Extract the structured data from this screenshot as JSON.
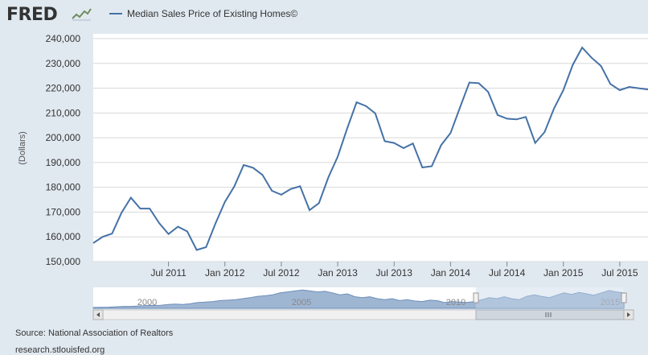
{
  "app": {
    "logo_text": "FRED",
    "logo_icon": "trend-line-icon",
    "source_text": "Source: National Association of Realtors",
    "site_text": "research.stlouisfed.org"
  },
  "colors": {
    "background": "#e1e9f0",
    "plot_background": "#ffffff",
    "series": "#4572a7",
    "grid": "#d8d8d8",
    "navigator_fill": "#9fb6d3",
    "navigator_mask": "#c7d6e8"
  },
  "navigator": {
    "years": [
      "2000",
      "2005",
      "2010",
      "2015"
    ],
    "overview_values": [
      0.04,
      0.05,
      0.06,
      0.08,
      0.1,
      0.1,
      0.12,
      0.14,
      0.15,
      0.16,
      0.2,
      0.22,
      0.2,
      0.24,
      0.3,
      0.32,
      0.35,
      0.4,
      0.42,
      0.45,
      0.5,
      0.55,
      0.62,
      0.65,
      0.7,
      0.8,
      0.85,
      0.9,
      0.95,
      0.9,
      0.85,
      0.88,
      0.8,
      0.7,
      0.75,
      0.6,
      0.55,
      0.6,
      0.5,
      0.45,
      0.5,
      0.4,
      0.45,
      0.38,
      0.35,
      0.42,
      0.4,
      0.3,
      0.35,
      0.32,
      0.3,
      0.35,
      0.45,
      0.55,
      0.5,
      0.6,
      0.5,
      0.45,
      0.62,
      0.7,
      0.62,
      0.55,
      0.68,
      0.8,
      0.72,
      0.82,
      0.75,
      0.68,
      0.8,
      0.92,
      0.85,
      0.8
    ],
    "selected_fraction": [
      0.69,
      1.0
    ]
  },
  "chart_data": {
    "type": "line",
    "title": "",
    "ylabel": "(Dollars)",
    "ylim": [
      150000,
      240000
    ],
    "yticks": [
      150000,
      160000,
      170000,
      180000,
      190000,
      200000,
      210000,
      220000,
      230000,
      240000
    ],
    "ytick_labels": [
      "150,000",
      "160,000",
      "170,000",
      "180,000",
      "190,000",
      "200,000",
      "210,000",
      "220,000",
      "230,000",
      "240,000"
    ],
    "xlim": [
      "2010-11",
      "2015-10"
    ],
    "xtick_labels": [
      {
        "date": "2011-07",
        "label": "Jul 2011"
      },
      {
        "date": "2012-01",
        "label": "Jan 2012"
      },
      {
        "date": "2012-07",
        "label": "Jul 2012"
      },
      {
        "date": "2013-01",
        "label": "Jan 2013"
      },
      {
        "date": "2013-07",
        "label": "Jul 2013"
      },
      {
        "date": "2014-01",
        "label": "Jan 2014"
      },
      {
        "date": "2014-07",
        "label": "Jul 2014"
      },
      {
        "date": "2015-01",
        "label": "Jan 2015"
      },
      {
        "date": "2015-07",
        "label": "Jul 2015"
      }
    ],
    "grid": true,
    "legend_position": "top-left",
    "series": [
      {
        "name": "Median Sales Price of Existing Homes©",
        "x": [
          "2010-11",
          "2010-12",
          "2011-01",
          "2011-02",
          "2011-03",
          "2011-04",
          "2011-05",
          "2011-06",
          "2011-07",
          "2011-08",
          "2011-09",
          "2011-10",
          "2011-11",
          "2011-12",
          "2012-01",
          "2012-02",
          "2012-03",
          "2012-04",
          "2012-05",
          "2012-06",
          "2012-07",
          "2012-08",
          "2012-09",
          "2012-10",
          "2012-11",
          "2012-12",
          "2013-01",
          "2013-02",
          "2013-03",
          "2013-04",
          "2013-05",
          "2013-06",
          "2013-07",
          "2013-08",
          "2013-09",
          "2013-10",
          "2013-11",
          "2013-12",
          "2014-01",
          "2014-02",
          "2014-03",
          "2014-04",
          "2014-05",
          "2014-06",
          "2014-07",
          "2014-08",
          "2014-09",
          "2014-10",
          "2014-11",
          "2014-12",
          "2015-01",
          "2015-02",
          "2015-03",
          "2015-04",
          "2015-05",
          "2015-06",
          "2015-07",
          "2015-08",
          "2015-09",
          "2015-10"
        ],
        "y": [
          157500,
          160000,
          161300,
          169700,
          175800,
          171400,
          171400,
          165600,
          161100,
          164100,
          162200,
          154700,
          155800,
          165400,
          174100,
          180300,
          189000,
          187900,
          185000,
          178600,
          177000,
          179300,
          180400,
          170800,
          173600,
          184000,
          192400,
          203700,
          214300,
          212800,
          209800,
          198600,
          197900,
          195800,
          197700,
          188000,
          188500,
          197000,
          201900,
          212200,
          222300,
          222000,
          218500,
          209200,
          207700,
          207400,
          208400,
          197900,
          202300,
          211800,
          219200,
          229400,
          236400,
          232300,
          229000,
          221700,
          219200,
          220500,
          220000,
          219500
        ]
      }
    ]
  }
}
